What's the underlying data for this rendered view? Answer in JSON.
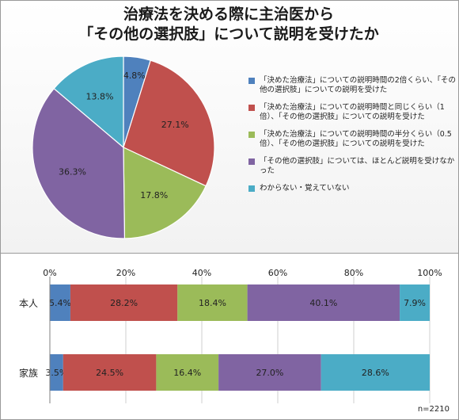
{
  "title_lines": [
    "治療法を決める際に主治医から",
    "「その他の選択肢」について説明を受けたか"
  ],
  "colors": [
    "#4f81bd",
    "#c0504d",
    "#9bbb59",
    "#8064a2",
    "#4bacc6"
  ],
  "legend": [
    "「決めた治療法」についての説明時間の2倍くらい、「その他の選択肢」についての説明を受けた",
    "「決めた治療法」についての説明時間と同じくらい（1倍）、「その他の選択肢」についての説明を受けた",
    "「決めた治療法」についての説明時間の半分くらい（0.5倍）、「その他の選択肢」についての説明を受けた",
    "「その他の選択肢」については、ほとんど説明を受けなかった",
    "わからない・覚えていない"
  ],
  "note": "n=2210",
  "chart_data": [
    {
      "type": "pie",
      "labels": [
        "「決めた治療法」についての説明時間の2倍くらい、「その他の選択肢」についての説明を受けた",
        "「決めた治療法」についての説明時間と同じくらい（1倍）、「その他の選択肢」についての説明を受けた",
        "「決めた治療法」についての説明時間の半分くらい（0.5倍）、「その他の選択肢」についての説明を受けた",
        "「その他の選択肢」については、ほとんど説明を受けなかった",
        "わからない・覚えていない"
      ],
      "values": [
        4.8,
        27.1,
        17.8,
        36.3,
        13.8
      ],
      "value_labels": [
        "4.8%",
        "27.1%",
        "17.8%",
        "36.3%",
        "13.8%"
      ],
      "legend_position": "right"
    },
    {
      "type": "bar",
      "orientation": "horizontal",
      "stacked": true,
      "categories": [
        "本人",
        "家族"
      ],
      "xlim": [
        0,
        100
      ],
      "xticks": [
        "0%",
        "20%",
        "40%",
        "60%",
        "80%",
        "100%"
      ],
      "series": [
        {
          "values": [
            5.4,
            3.5
          ],
          "labels": [
            "5.4%",
            "3.5%"
          ]
        },
        {
          "values": [
            28.2,
            24.5
          ],
          "labels": [
            "28.2%",
            "24.5%"
          ]
        },
        {
          "values": [
            18.4,
            16.4
          ],
          "labels": [
            "18.4%",
            "16.4%"
          ]
        },
        {
          "values": [
            40.1,
            27.0
          ],
          "labels": [
            "40.1%",
            "27.0%"
          ]
        },
        {
          "values": [
            7.9,
            28.6
          ],
          "labels": [
            "7.9%",
            "28.6%"
          ]
        }
      ],
      "grid": true
    }
  ]
}
